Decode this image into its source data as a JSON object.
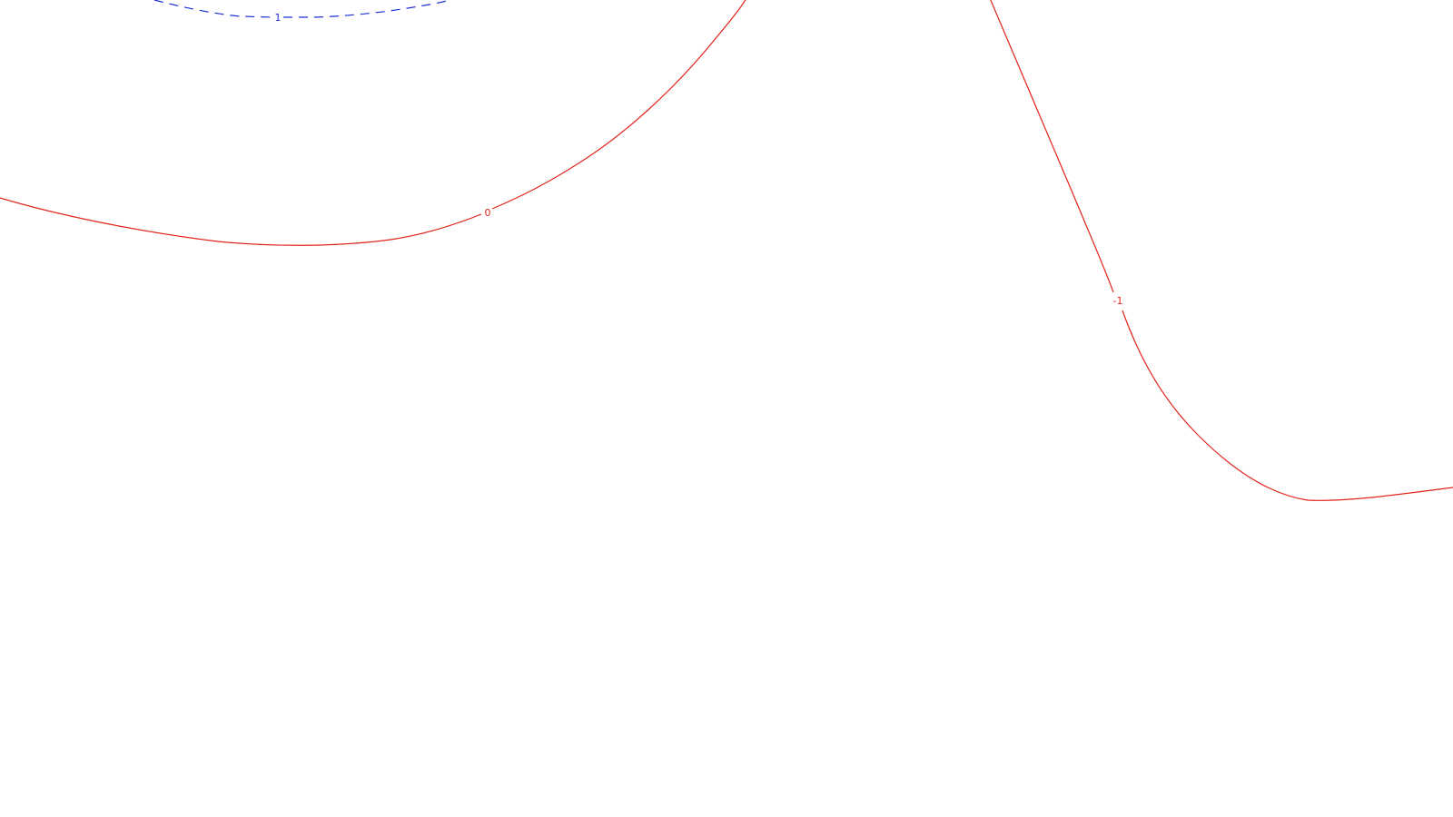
{
  "map": {
    "contours": [
      {
        "id": "contour-1",
        "level_label": "1",
        "style": "dashed",
        "color": "#1f2fd6"
      },
      {
        "id": "contour-0",
        "level_label": "0",
        "style": "solid",
        "color": "#e2231a"
      },
      {
        "id": "contour-neg1",
        "level_label": "-1",
        "style": "solid",
        "color": "#e2231a"
      }
    ]
  }
}
